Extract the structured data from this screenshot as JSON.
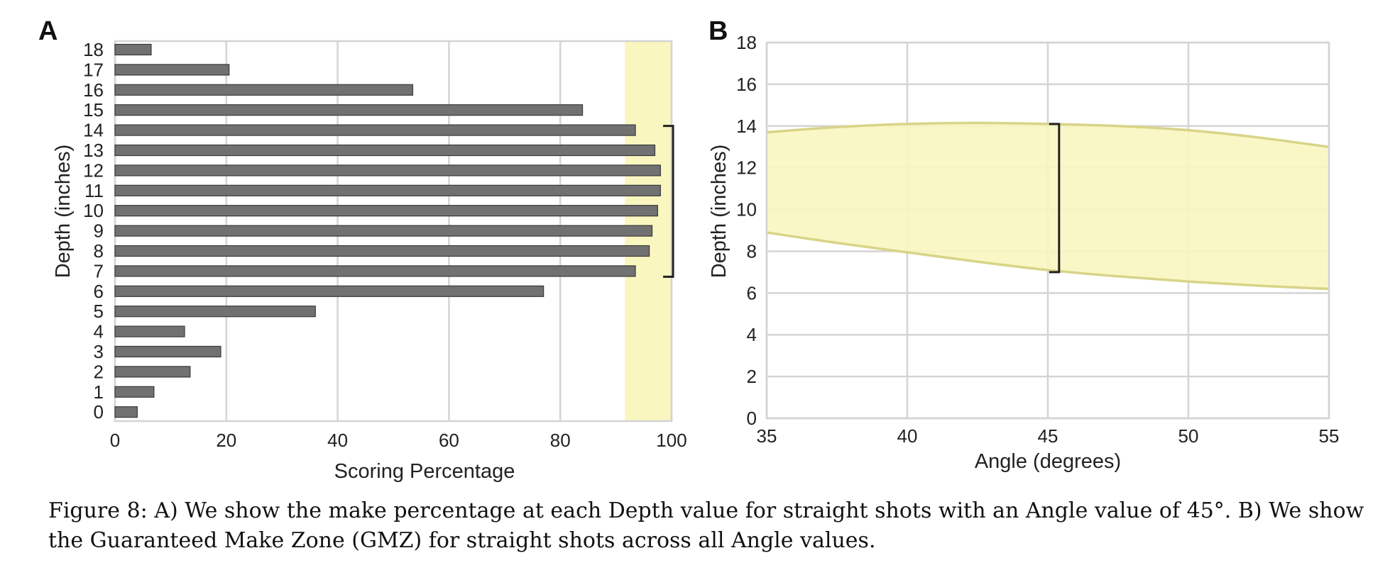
{
  "chart_data": [
    {
      "panel": "A",
      "type": "bar",
      "orientation": "horizontal",
      "categories": [
        "0",
        "1",
        "2",
        "3",
        "4",
        "5",
        "6",
        "7",
        "8",
        "9",
        "10",
        "11",
        "12",
        "13",
        "14",
        "15",
        "16",
        "17",
        "18"
      ],
      "values": [
        4,
        7,
        13.5,
        19,
        12.5,
        36,
        77,
        93.5,
        96,
        96.5,
        97.5,
        98,
        98,
        97,
        93.5,
        84,
        53.5,
        20.5,
        6.5
      ],
      "xlabel": "Scoring Percentage",
      "ylabel": "Depth (inches)",
      "xlim": [
        0,
        100
      ],
      "xticks": [
        "0",
        "20",
        "40",
        "60",
        "80",
        "100"
      ],
      "grid": "vertical",
      "highlight_band": {
        "axis": "x",
        "from": 92,
        "to": 100,
        "color": "#faf6c0"
      },
      "bracket": {
        "axis": "y",
        "from": 7,
        "to": 14
      },
      "bar_color": "#717171"
    },
    {
      "panel": "B",
      "type": "area",
      "x": [
        35,
        37.5,
        40,
        42.5,
        45,
        47.5,
        50,
        52.5,
        55
      ],
      "upper": [
        13.7,
        13.95,
        14.1,
        14.15,
        14.1,
        14.0,
        13.8,
        13.45,
        13.0
      ],
      "lower": [
        8.9,
        8.4,
        7.95,
        7.5,
        7.1,
        6.8,
        6.55,
        6.35,
        6.2
      ],
      "xlabel": "Angle (degrees)",
      "ylabel": "Depth (inches)",
      "xlim": [
        35,
        55
      ],
      "ylim": [
        0,
        18
      ],
      "xticks": [
        "35",
        "40",
        "45",
        "50",
        "55"
      ],
      "yticks": [
        "0",
        "2",
        "4",
        "6",
        "8",
        "10",
        "12",
        "14",
        "16",
        "18"
      ],
      "grid": "both",
      "fill_color": "#faf6c0",
      "line_color": "#d8d488",
      "bracket": {
        "x": 45.4,
        "from": 7,
        "to": 14.1
      }
    }
  ],
  "panels": {
    "a_label": "A",
    "b_label": "B"
  },
  "caption": "Figure 8: A) We show the make percentage at each Depth value for straight shots with an Angle value of 45°. B) We show the Guaranteed Make Zone (GMZ) for straight shots across all Angle values."
}
